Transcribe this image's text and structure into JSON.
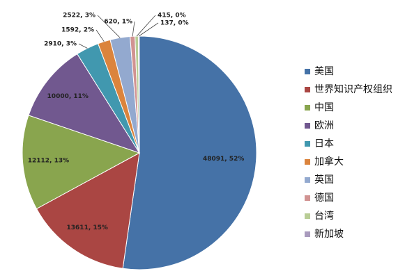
{
  "chart_data": {
    "type": "pie",
    "categories": [
      "美国",
      "世界知识产权组织",
      "中国",
      "欧洲",
      "日本",
      "加拿大",
      "英国",
      "德国",
      "台湾",
      "新加坡"
    ],
    "values": [
      48091,
      13611,
      12112,
      10000,
      2910,
      1592,
      2522,
      620,
      415,
      137
    ],
    "value_labels": [
      "48091, 52%",
      "13611, 15%",
      "12112, 13%",
      "10000, 11%",
      "2910, 3%",
      "1592, 2%",
      "2522, 3%",
      "620, 1%",
      "415, 0%",
      "137, 0%"
    ],
    "colors": [
      "#4572a7",
      "#aa4643",
      "#89a54e",
      "#71588f",
      "#4198af",
      "#db843d",
      "#93a9cf",
      "#d19392",
      "#b9cd96",
      "#a99bbd"
    ],
    "legend": "right"
  }
}
